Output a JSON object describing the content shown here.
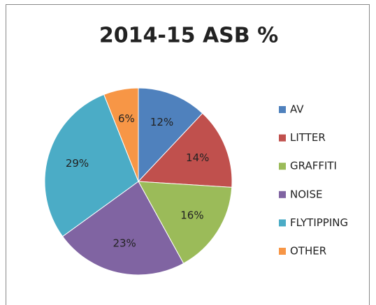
{
  "chart_data": {
    "type": "pie",
    "title": "2014-15 ASB %",
    "categories": [
      "AV",
      "LITTER",
      "GRAFFITI",
      "NOISE",
      "FLYTIPPING",
      "OTHER"
    ],
    "values": [
      12,
      14,
      16,
      23,
      29,
      6
    ],
    "value_labels": [
      "12%",
      "14%",
      "16%",
      "23%",
      "29%",
      "6%"
    ],
    "colors": [
      "#4f81bd",
      "#c0504d",
      "#9bbb59",
      "#8064a2",
      "#4bacc6",
      "#f79646"
    ],
    "legend": "right"
  }
}
